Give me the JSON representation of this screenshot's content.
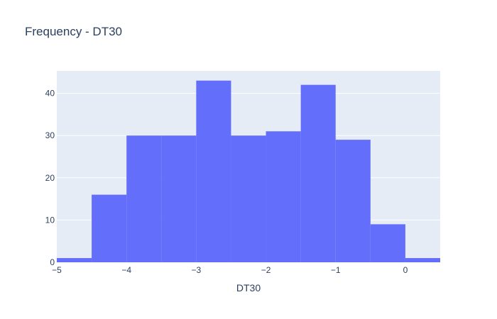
{
  "chart_data": {
    "type": "bar",
    "title": "Frequency - DT30",
    "xlabel": "DT30",
    "ylabel": "",
    "bin_edges": [
      -5,
      -4.5,
      -4,
      -3.5,
      -3,
      -2.5,
      -2,
      -1.5,
      -1,
      -0.5,
      0,
      0.5
    ],
    "values": [
      1,
      16,
      30,
      30,
      43,
      30,
      31,
      42,
      29,
      9,
      1
    ],
    "xlim": [
      -5,
      0.5
    ],
    "ylim": [
      0,
      45.3
    ],
    "x_ticks": [
      -5,
      -4,
      -3,
      -2,
      -1,
      0
    ],
    "x_tick_labels": [
      "−5",
      "−4",
      "−3",
      "−2",
      "−1",
      "0"
    ],
    "y_ticks": [
      0,
      10,
      20,
      30,
      40
    ],
    "y_tick_labels": [
      "0",
      "10",
      "20",
      "30",
      "40"
    ],
    "grid": true,
    "colors": {
      "bar": "#636efa",
      "plot_background": "#e5ecf6",
      "grid": "#ffffff",
      "text": "#2a3f5f"
    }
  }
}
